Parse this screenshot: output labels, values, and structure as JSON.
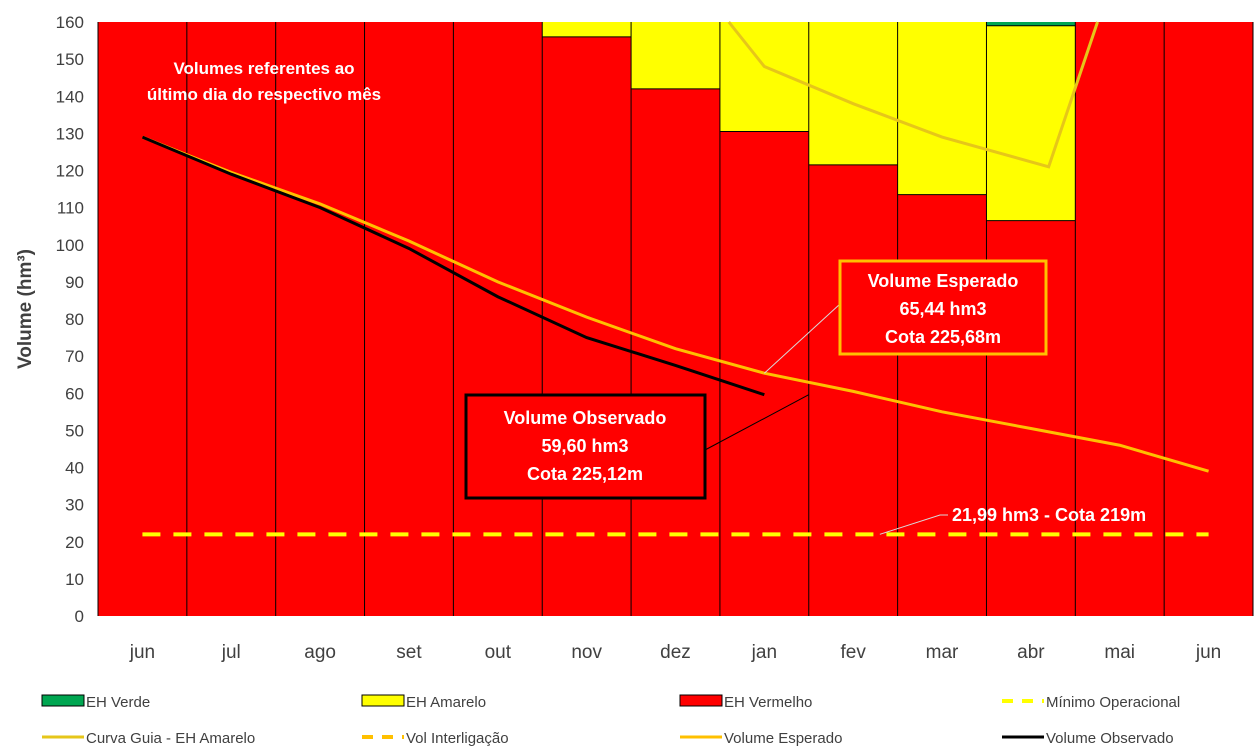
{
  "chart_data": {
    "type": "bar",
    "ylabel": "Volume (hm³)",
    "ylim": [
      0,
      160
    ],
    "yticks": [
      0,
      10,
      20,
      30,
      40,
      50,
      60,
      70,
      80,
      90,
      100,
      110,
      120,
      130,
      140,
      150,
      160
    ],
    "categories": [
      "jun",
      "jul",
      "ago",
      "set",
      "out",
      "nov",
      "dez",
      "jan",
      "fev",
      "mar",
      "abr",
      "mai",
      "jun"
    ],
    "bands": [
      {
        "name": "EH Verde",
        "color": "#00a651",
        "values": [
          0,
          0,
          0,
          0,
          0,
          0,
          0,
          0,
          0,
          0,
          1,
          0,
          0
        ]
      },
      {
        "name": "EH Amarelo",
        "color": "#ffff00",
        "values": [
          0,
          0,
          0,
          0,
          0,
          4,
          18,
          29.5,
          38.5,
          46.5,
          52.5,
          0,
          0
        ]
      },
      {
        "name": "EH Vermelho",
        "color": "#ff0000",
        "values": [
          160,
          160,
          160,
          160,
          160,
          156,
          142,
          130.5,
          121.5,
          113.5,
          106.5,
          160,
          160
        ]
      }
    ],
    "series": [
      {
        "name": "Mínimo Operacional",
        "color": "#ffff00",
        "dash": true,
        "x": [
          0,
          12
        ],
        "values": [
          22,
          22
        ]
      },
      {
        "name": "Curva Guia - EH Amarelo",
        "color": "#e6c619",
        "dash": false,
        "x": [
          6.6,
          7,
          8,
          9,
          10.2,
          10.75
        ],
        "values": [
          160,
          148,
          138,
          129,
          121,
          160
        ]
      },
      {
        "name": "Vol Interligação",
        "color": "#ffc000",
        "dash": true,
        "x": [],
        "values": []
      },
      {
        "name": "Volume Esperado",
        "color": "#ffc000",
        "dash": false,
        "x": [
          0,
          1,
          2,
          3,
          4,
          5,
          6,
          7,
          8,
          9,
          10,
          11,
          12
        ],
        "values": [
          129,
          119.5,
          111,
          101,
          90,
          80.5,
          72,
          65.4,
          60.5,
          55,
          50.5,
          46,
          39
        ]
      },
      {
        "name": "Volume Observado",
        "color": "#000000",
        "dash": false,
        "x": [
          0,
          1,
          2,
          3,
          4,
          5,
          6,
          7
        ],
        "values": [
          129,
          119,
          110,
          99,
          86,
          75,
          67.5,
          59.6
        ]
      }
    ],
    "legend_placement": "bottom",
    "legend_order": [
      "EH Verde",
      "EH Amarelo",
      "EH Vermelho",
      "Mínimo Operacional",
      "Curva Guia - EH Amarelo",
      "Vol Interligação",
      "Volume Esperado",
      "Volume Observado"
    ],
    "annotations": {
      "note": [
        "Volumes referentes ao",
        "último dia do respectivo mês"
      ],
      "esperado": {
        "lines": [
          "Volume Esperado",
          "65,44 hm3",
          "Cota 225,68m"
        ],
        "x": 7,
        "y": 65.4
      },
      "observado": {
        "lines": [
          "Volume Observado",
          "59,60 hm3",
          "Cota 225,12m"
        ],
        "x": 7.5,
        "y": 59.6
      },
      "minimo": {
        "label": "21,99 hm3 - Cota 219m",
        "x": 8.3,
        "y": 22
      }
    }
  }
}
